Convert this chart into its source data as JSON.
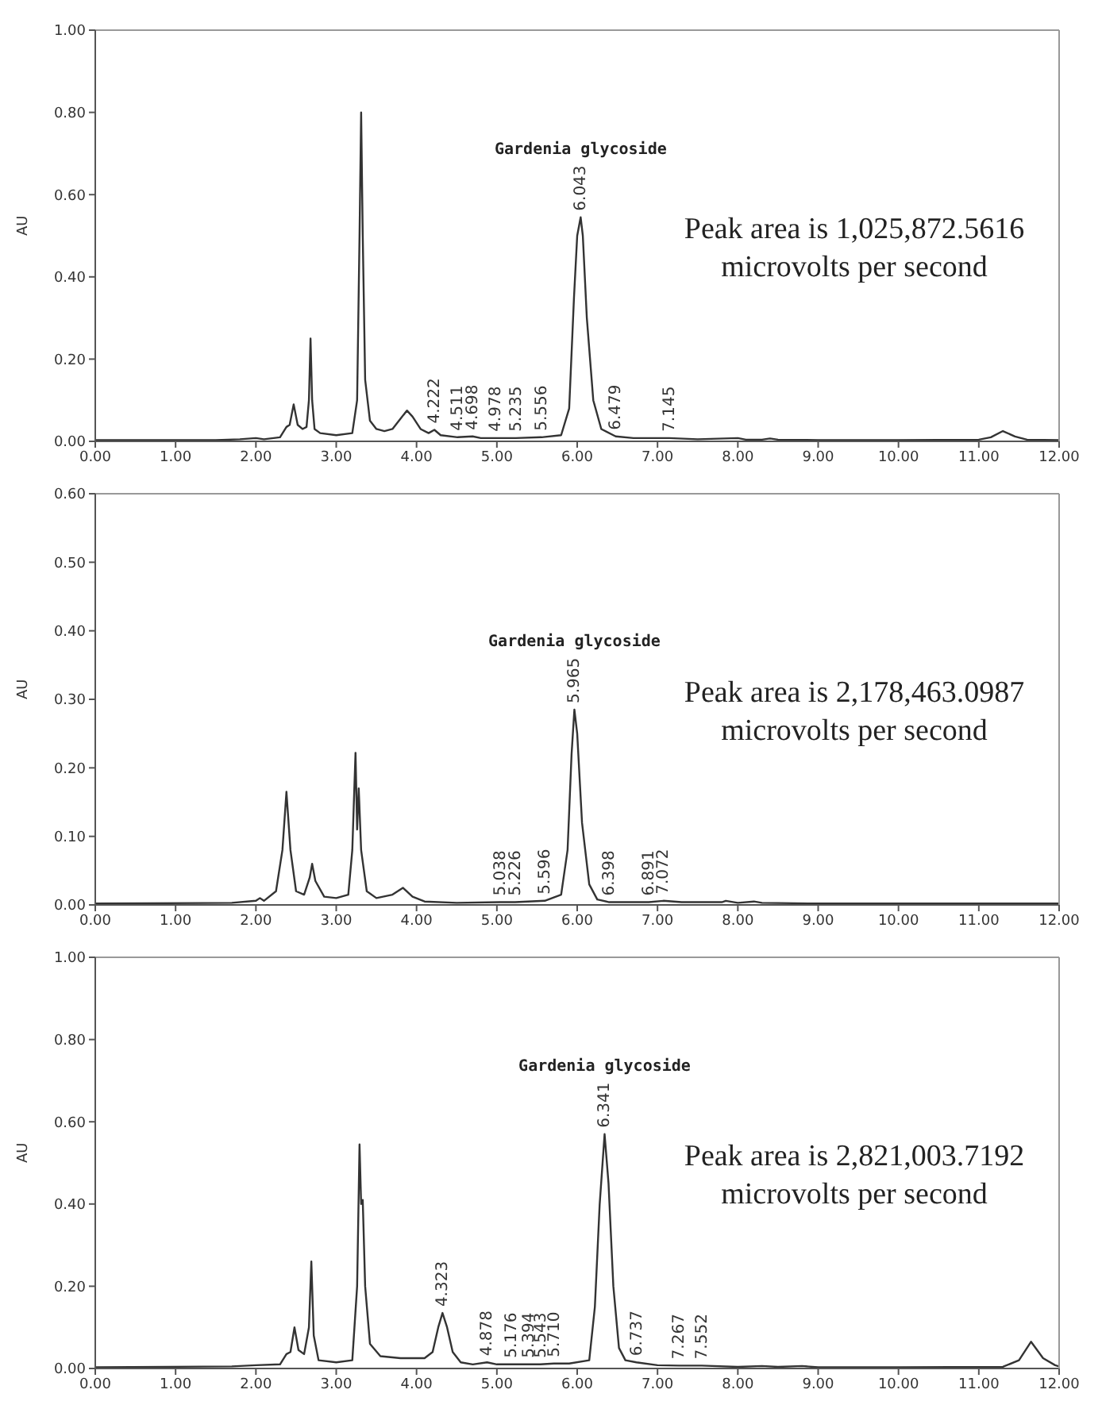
{
  "chart_data": [
    {
      "type": "line",
      "ylabel": "AU",
      "xlim": [
        0,
        12
      ],
      "ylim": [
        0,
        1
      ],
      "marker": "none",
      "line_style": "solid",
      "xticks": [
        {
          "value": 0,
          "label": "0.00"
        },
        {
          "value": 1,
          "label": "1.00"
        },
        {
          "value": 2,
          "label": "2.00"
        },
        {
          "value": 3,
          "label": "3.00"
        },
        {
          "value": 4,
          "label": "4.00"
        },
        {
          "value": 5,
          "label": "5.00"
        },
        {
          "value": 6,
          "label": "6.00"
        },
        {
          "value": 7,
          "label": "7.00"
        },
        {
          "value": 8,
          "label": "8.00"
        },
        {
          "value": 9,
          "label": "9.00"
        },
        {
          "value": 10,
          "label": "10.00"
        },
        {
          "value": 11,
          "label": "11.00"
        },
        {
          "value": 12,
          "label": "12.00"
        }
      ],
      "yticks": [
        {
          "value": 0,
          "label": "0.00"
        },
        {
          "value": 0.2,
          "label": "0.20"
        },
        {
          "value": 0.4,
          "label": "0.40"
        },
        {
          "value": 0.6,
          "label": "0.60"
        },
        {
          "value": 0.8,
          "label": "0.80"
        },
        {
          "value": 1,
          "label": "1.00"
        }
      ],
      "annotations": [
        "Gardenia glycoside",
        "Peak area is 1,025,872.5616 microvolts per second",
        {
          "text": "4.222",
          "x": 4.222,
          "y": 0.028
        },
        {
          "text": "4.511",
          "x": 4.511,
          "y": 0.01
        },
        {
          "text": "4.698",
          "x": 4.698,
          "y": 0.012
        },
        {
          "text": "4.978",
          "x": 4.978,
          "y": 0.008
        },
        {
          "text": "5.235",
          "x": 5.235,
          "y": 0.008
        },
        {
          "text": "5.556",
          "x": 5.556,
          "y": 0.01
        },
        {
          "text": "6.043",
          "x": 6.043,
          "y": 0.545
        },
        {
          "text": "6.479",
          "x": 6.479,
          "y": 0.012
        },
        {
          "text": "7.145",
          "x": 7.145,
          "y": 0.008
        }
      ],
      "series": [
        {
          "color": "#333333",
          "x": [
            0,
            1.5,
            1.8,
            2.0,
            2.1,
            2.3,
            2.38,
            2.42,
            2.47,
            2.52,
            2.58,
            2.63,
            2.66,
            2.68,
            2.7,
            2.73,
            2.8,
            3.0,
            3.2,
            3.26,
            3.29,
            3.31,
            3.33,
            3.36,
            3.42,
            3.5,
            3.6,
            3.7,
            3.8,
            3.88,
            3.95,
            4.05,
            4.15,
            4.222,
            4.3,
            4.511,
            4.698,
            4.8,
            4.978,
            5.235,
            5.556,
            5.8,
            5.9,
            5.96,
            6.0,
            6.043,
            6.07,
            6.12,
            6.2,
            6.3,
            6.479,
            6.7,
            7.145,
            7.5,
            8.0,
            8.1,
            8.3,
            8.4,
            8.5,
            9,
            10,
            11,
            11.15,
            11.3,
            11.45,
            11.6,
            12
          ],
          "values": [
            0.003,
            0.003,
            0.005,
            0.008,
            0.005,
            0.01,
            0.035,
            0.04,
            0.09,
            0.04,
            0.03,
            0.035,
            0.1,
            0.25,
            0.1,
            0.03,
            0.02,
            0.015,
            0.02,
            0.1,
            0.5,
            0.8,
            0.5,
            0.15,
            0.05,
            0.03,
            0.025,
            0.03,
            0.055,
            0.075,
            0.06,
            0.03,
            0.02,
            0.028,
            0.015,
            0.01,
            0.012,
            0.008,
            0.008,
            0.008,
            0.01,
            0.015,
            0.08,
            0.35,
            0.5,
            0.545,
            0.5,
            0.3,
            0.1,
            0.03,
            0.012,
            0.008,
            0.008,
            0.005,
            0.008,
            0.004,
            0.004,
            0.007,
            0.004,
            0.003,
            0.003,
            0.004,
            0.01,
            0.025,
            0.012,
            0.004,
            0.003
          ]
        }
      ]
    },
    {
      "type": "line",
      "ylabel": "AU",
      "xlim": [
        0,
        12
      ],
      "ylim": [
        0,
        0.6
      ],
      "marker": "none",
      "line_style": "solid",
      "xticks": [
        {
          "value": 0,
          "label": "0.00"
        },
        {
          "value": 1,
          "label": "1.00"
        },
        {
          "value": 2,
          "label": "2.00"
        },
        {
          "value": 3,
          "label": "3.00"
        },
        {
          "value": 4,
          "label": "4.00"
        },
        {
          "value": 5,
          "label": "5.00"
        },
        {
          "value": 6,
          "label": "6.00"
        },
        {
          "value": 7,
          "label": "7.00"
        },
        {
          "value": 8,
          "label": "8.00"
        },
        {
          "value": 9,
          "label": "9.00"
        },
        {
          "value": 10,
          "label": "10.00"
        },
        {
          "value": 11,
          "label": "11.00"
        },
        {
          "value": 12,
          "label": "12.00"
        }
      ],
      "yticks": [
        {
          "value": 0,
          "label": "0.00"
        },
        {
          "value": 0.1,
          "label": "0.10"
        },
        {
          "value": 0.2,
          "label": "0.20"
        },
        {
          "value": 0.3,
          "label": "0.30"
        },
        {
          "value": 0.4,
          "label": "0.40"
        },
        {
          "value": 0.5,
          "label": "0.50"
        },
        {
          "value": 0.6,
          "label": "0.60"
        }
      ],
      "annotations": [
        "Gardenia glycoside",
        "Peak area is 2,178,463.0987 microvolts per second",
        {
          "text": "5.038",
          "x": 5.038,
          "y": 0.004
        },
        {
          "text": "5.226",
          "x": 5.226,
          "y": 0.004
        },
        {
          "text": "5.596",
          "x": 5.596,
          "y": 0.006
        },
        {
          "text": "5.965",
          "x": 5.965,
          "y": 0.285
        },
        {
          "text": "6.398",
          "x": 6.398,
          "y": 0.004
        },
        {
          "text": "6.891",
          "x": 6.891,
          "y": 0.004
        },
        {
          "text": "7.072",
          "x": 7.072,
          "y": 0.006
        }
      ],
      "series": [
        {
          "color": "#333333",
          "x": [
            0,
            1.7,
            2.0,
            2.05,
            2.1,
            2.25,
            2.33,
            2.38,
            2.43,
            2.5,
            2.6,
            2.67,
            2.7,
            2.74,
            2.85,
            3.0,
            3.15,
            3.2,
            3.24,
            3.26,
            3.28,
            3.31,
            3.38,
            3.5,
            3.7,
            3.83,
            3.95,
            4.1,
            4.5,
            5.038,
            5.226,
            5.596,
            5.8,
            5.88,
            5.93,
            5.965,
            6.0,
            6.06,
            6.15,
            6.25,
            6.398,
            6.891,
            7.072,
            7.3,
            7.8,
            7.85,
            8.0,
            8.2,
            8.3,
            9,
            12
          ],
          "values": [
            0.002,
            0.003,
            0.006,
            0.01,
            0.006,
            0.02,
            0.08,
            0.165,
            0.08,
            0.02,
            0.015,
            0.04,
            0.06,
            0.035,
            0.012,
            0.01,
            0.015,
            0.08,
            0.222,
            0.11,
            0.17,
            0.08,
            0.02,
            0.01,
            0.015,
            0.025,
            0.012,
            0.005,
            0.003,
            0.004,
            0.004,
            0.006,
            0.015,
            0.08,
            0.22,
            0.285,
            0.25,
            0.12,
            0.03,
            0.008,
            0.004,
            0.004,
            0.006,
            0.004,
            0.004,
            0.006,
            0.003,
            0.005,
            0.003,
            0.002,
            0.002
          ]
        }
      ]
    },
    {
      "type": "line",
      "ylabel": "AU",
      "xlim": [
        0,
        12
      ],
      "ylim": [
        0,
        1
      ],
      "marker": "none",
      "line_style": "solid",
      "xticks": [
        {
          "value": 0,
          "label": "0.00"
        },
        {
          "value": 1,
          "label": "1.00"
        },
        {
          "value": 2,
          "label": "2.00"
        },
        {
          "value": 3,
          "label": "3.00"
        },
        {
          "value": 4,
          "label": "4.00"
        },
        {
          "value": 5,
          "label": "5.00"
        },
        {
          "value": 6,
          "label": "6.00"
        },
        {
          "value": 7,
          "label": "7.00"
        },
        {
          "value": 8,
          "label": "8.00"
        },
        {
          "value": 9,
          "label": "9.00"
        },
        {
          "value": 10,
          "label": "10.00"
        },
        {
          "value": 11,
          "label": "11.00"
        },
        {
          "value": 12,
          "label": "12.00"
        }
      ],
      "yticks": [
        {
          "value": 0,
          "label": "0.00"
        },
        {
          "value": 0.2,
          "label": "0.20"
        },
        {
          "value": 0.4,
          "label": "0.40"
        },
        {
          "value": 0.6,
          "label": "0.60"
        },
        {
          "value": 0.8,
          "label": "0.80"
        },
        {
          "value": 1,
          "label": "1.00"
        }
      ],
      "annotations": [
        "Gardenia glycoside",
        "Peak area is 2,821,003.7192 microvolts per second",
        {
          "text": "4.323",
          "x": 4.323,
          "y": 0.135
        },
        {
          "text": "4.878",
          "x": 4.878,
          "y": 0.015
        },
        {
          "text": "5.176",
          "x": 5.176,
          "y": 0.01
        },
        {
          "text": "5.394",
          "x": 5.394,
          "y": 0.01
        },
        {
          "text": "5.543",
          "x": 5.543,
          "y": 0.01
        },
        {
          "text": "5.710",
          "x": 5.71,
          "y": 0.012
        },
        {
          "text": "6.341",
          "x": 6.341,
          "y": 0.57
        },
        {
          "text": "6.737",
          "x": 6.737,
          "y": 0.015
        },
        {
          "text": "7.267",
          "x": 7.267,
          "y": 0.007
        },
        {
          "text": "7.552",
          "x": 7.552,
          "y": 0.007
        }
      ],
      "series": [
        {
          "color": "#333333",
          "x": [
            0,
            1.7,
            2.0,
            2.3,
            2.38,
            2.43,
            2.48,
            2.53,
            2.6,
            2.66,
            2.69,
            2.72,
            2.78,
            3.0,
            3.2,
            3.26,
            3.29,
            3.31,
            3.33,
            3.36,
            3.42,
            3.55,
            3.8,
            4.1,
            4.2,
            4.27,
            4.323,
            4.38,
            4.45,
            4.55,
            4.7,
            4.878,
            5.0,
            5.176,
            5.394,
            5.543,
            5.71,
            5.9,
            6.15,
            6.22,
            6.28,
            6.341,
            6.39,
            6.45,
            6.52,
            6.6,
            6.737,
            7.0,
            7.267,
            7.552,
            8,
            8.3,
            8.5,
            8.8,
            9,
            10,
            11.3,
            11.5,
            11.65,
            11.8,
            11.95,
            12
          ],
          "values": [
            0.003,
            0.005,
            0.008,
            0.01,
            0.035,
            0.04,
            0.1,
            0.045,
            0.035,
            0.1,
            0.26,
            0.08,
            0.02,
            0.015,
            0.02,
            0.2,
            0.545,
            0.4,
            0.41,
            0.2,
            0.06,
            0.03,
            0.025,
            0.025,
            0.04,
            0.1,
            0.135,
            0.1,
            0.04,
            0.015,
            0.01,
            0.015,
            0.01,
            0.01,
            0.01,
            0.01,
            0.012,
            0.012,
            0.02,
            0.15,
            0.4,
            0.57,
            0.45,
            0.2,
            0.05,
            0.02,
            0.015,
            0.008,
            0.007,
            0.007,
            0.004,
            0.006,
            0.004,
            0.006,
            0.003,
            0.003,
            0.004,
            0.02,
            0.065,
            0.025,
            0.008,
            0.005
          ]
        }
      ]
    }
  ]
}
